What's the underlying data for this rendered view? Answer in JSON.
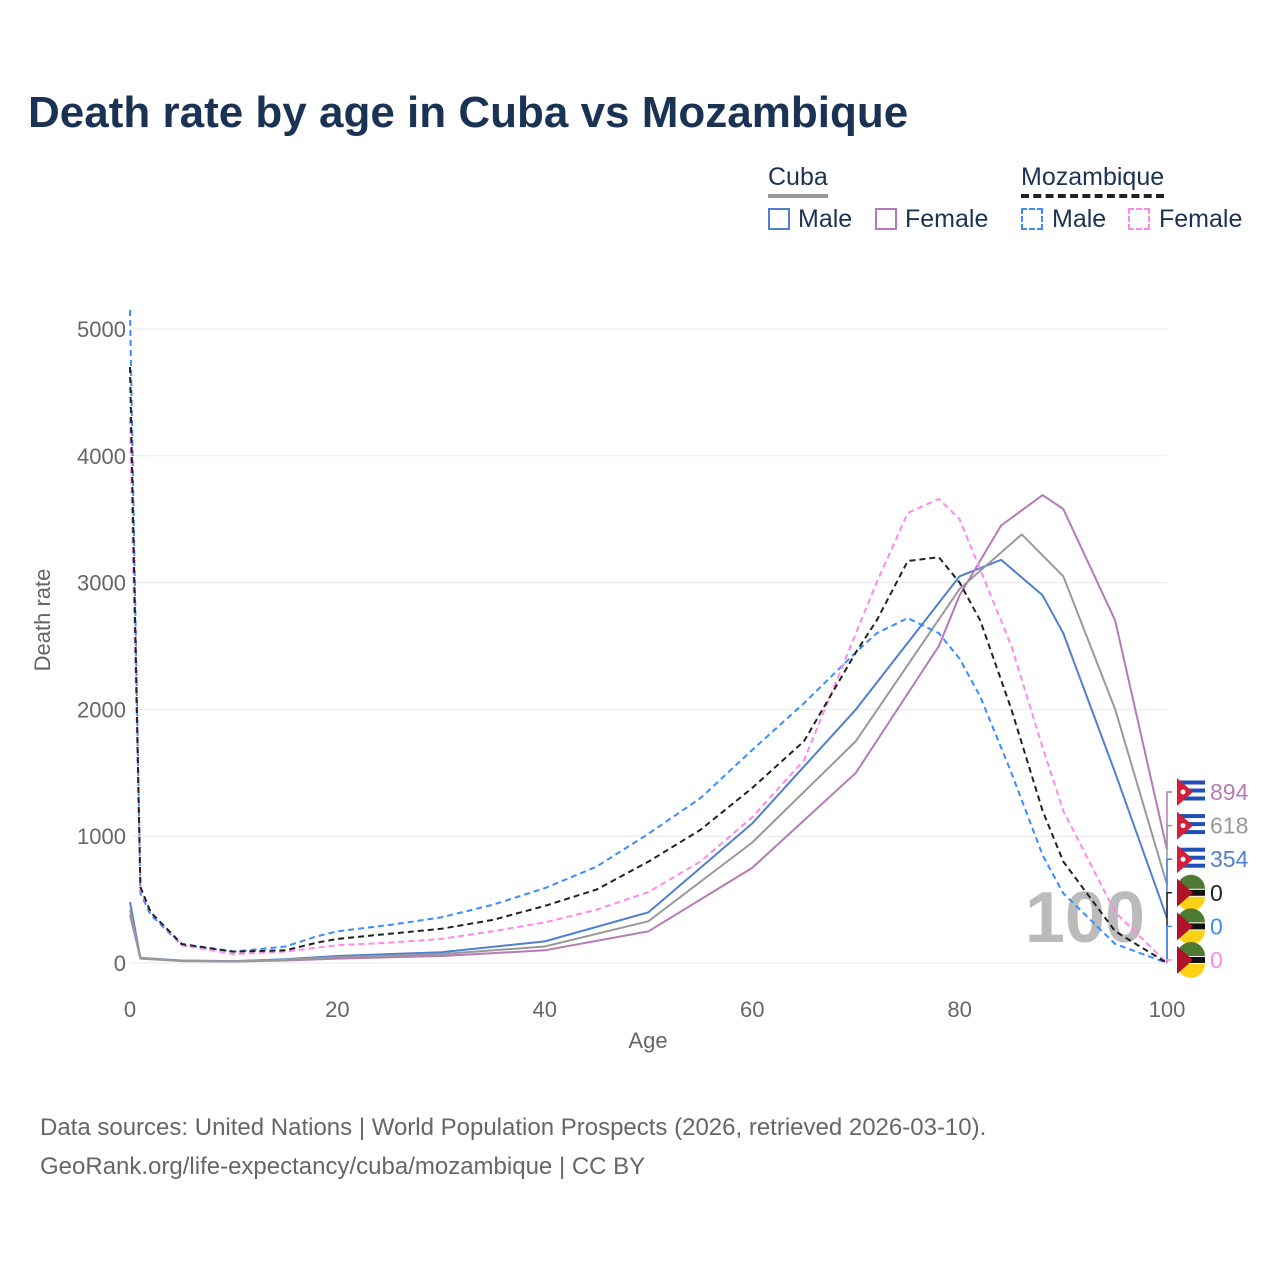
{
  "title": "Death rate by age in Cuba vs Mozambique",
  "legend": {
    "groups": [
      {
        "name": "Cuba",
        "items": [
          "Male",
          "Female"
        ]
      },
      {
        "name": "Mozambique",
        "items": [
          "Male",
          "Female"
        ]
      }
    ]
  },
  "source": [
    "Data sources: United Nations | World Population Prospects (2026, retrieved 2026-03-10).",
    "GeoRank.org/life-expectancy/cuba/mozambique | CC BY"
  ],
  "chart_data": {
    "type": "line",
    "title": "Death rate by age in Cuba vs Mozambique",
    "xlabel": "Age",
    "ylabel": "Death rate",
    "xlim": [
      0,
      100
    ],
    "ylim": [
      0,
      5000
    ],
    "xticks": [
      0,
      20,
      40,
      60,
      80,
      100
    ],
    "yticks": [
      0,
      1000,
      2000,
      3000,
      4000,
      5000
    ],
    "watermark": "100",
    "series": [
      {
        "name": "Cuba Male",
        "color": "#4f7fcf",
        "dash": false,
        "end_label": "354",
        "x": [
          0,
          1,
          5,
          10,
          15,
          20,
          30,
          40,
          50,
          60,
          70,
          80,
          84,
          88,
          90,
          95,
          100
        ],
        "y": [
          480,
          40,
          20,
          15,
          30,
          55,
          85,
          170,
          400,
          1100,
          2000,
          3050,
          3180,
          2900,
          2600,
          1500,
          354
        ]
      },
      {
        "name": "Cuba Female",
        "color": "#b57ab8",
        "dash": false,
        "end_label": "894",
        "x": [
          0,
          1,
          5,
          10,
          15,
          20,
          30,
          40,
          50,
          60,
          70,
          78,
          80,
          84,
          88,
          90,
          95,
          100
        ],
        "y": [
          380,
          35,
          15,
          12,
          20,
          35,
          55,
          100,
          250,
          750,
          1500,
          2500,
          2900,
          3450,
          3690,
          3580,
          2700,
          894
        ]
      },
      {
        "name": "Cuba",
        "color": "#999999",
        "dash": false,
        "end_label": "618",
        "x": [
          0,
          1,
          5,
          10,
          15,
          20,
          30,
          40,
          50,
          60,
          70,
          80,
          86,
          90,
          95,
          100
        ],
        "y": [
          420,
          38,
          18,
          14,
          25,
          45,
          70,
          130,
          330,
          950,
          1750,
          2950,
          3380,
          3050,
          2000,
          618
        ]
      },
      {
        "name": "Mozambique Male",
        "color": "#3b8cff",
        "dash": true,
        "end_label": "0",
        "x": [
          0,
          1,
          2,
          5,
          10,
          15,
          18,
          20,
          25,
          30,
          35,
          40,
          45,
          50,
          55,
          60,
          65,
          70,
          72,
          75,
          78,
          80,
          82,
          85,
          88,
          90,
          95,
          100
        ],
        "y": [
          5150,
          550,
          380,
          140,
          90,
          130,
          210,
          250,
          300,
          360,
          460,
          590,
          760,
          1020,
          1300,
          1680,
          2050,
          2450,
          2600,
          2720,
          2600,
          2400,
          2100,
          1500,
          850,
          550,
          150,
          0
        ]
      },
      {
        "name": "Mozambique Female",
        "color": "#ff88ee",
        "dash": true,
        "end_label": "0",
        "x": [
          0,
          1,
          2,
          5,
          10,
          15,
          18,
          20,
          25,
          30,
          35,
          40,
          45,
          50,
          55,
          60,
          65,
          70,
          72,
          75,
          78,
          80,
          82,
          85,
          88,
          90,
          95,
          100
        ],
        "y": [
          4300,
          580,
          400,
          140,
          70,
          90,
          120,
          140,
          160,
          190,
          250,
          320,
          420,
          560,
          800,
          1150,
          1600,
          2600,
          3000,
          3550,
          3660,
          3500,
          3100,
          2500,
          1700,
          1200,
          400,
          0
        ]
      },
      {
        "name": "Mozambique",
        "color": "#222222",
        "dash": true,
        "end_label": "0",
        "x": [
          0,
          1,
          2,
          5,
          10,
          15,
          18,
          20,
          25,
          30,
          35,
          40,
          45,
          50,
          55,
          60,
          65,
          70,
          72,
          75,
          78,
          80,
          82,
          85,
          88,
          90,
          95,
          100
        ],
        "y": [
          4700,
          600,
          400,
          150,
          90,
          100,
          160,
          190,
          230,
          270,
          340,
          450,
          580,
          800,
          1050,
          1380,
          1750,
          2450,
          2700,
          3170,
          3200,
          3000,
          2700,
          2000,
          1200,
          800,
          250,
          0
        ]
      }
    ]
  }
}
